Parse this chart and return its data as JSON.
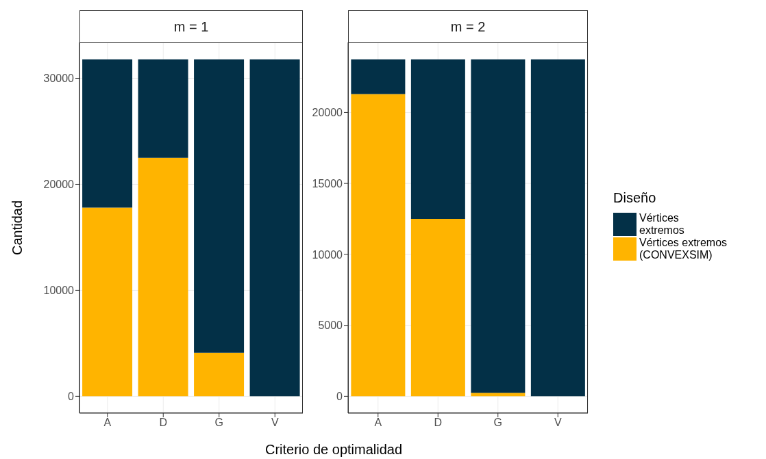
{
  "chart_data": [
    {
      "type": "bar",
      "title": "m = 1",
      "xlabel": "Criterio de optimalidad",
      "ylabel": "Cantidad",
      "categories": [
        "A",
        "D",
        "G",
        "V"
      ],
      "stacked": true,
      "grid": true,
      "series": [
        {
          "color": "#ffb400",
          "values": [
            17800,
            22500,
            4100,
            0
          ]
        },
        {
          "color": "#033047",
          "values": [
            14000,
            9300,
            27700,
            31800
          ]
        }
      ],
      "ylim": [
        -1590,
        33390
      ],
      "yticks": [
        0,
        10000,
        20000,
        30000
      ]
    },
    {
      "type": "bar",
      "title": "m = 2",
      "categories": [
        "A",
        "D",
        "G",
        "V"
      ],
      "stacked": true,
      "grid": true,
      "legend": "right",
      "legend_title": "Diseño",
      "series": [
        {
          "name": "Vértices extremos\n(CONVEXSIM)",
          "color": "#ffb400",
          "values": [
            21300,
            12500,
            250,
            0
          ]
        },
        {
          "name": "Vértices\nextremos",
          "color": "#033047",
          "values": [
            2450,
            11250,
            23500,
            23750
          ]
        }
      ],
      "ylim": [
        -1187.5,
        24937.5
      ],
      "yticks": [
        0,
        5000,
        10000,
        15000,
        20000
      ]
    }
  ]
}
